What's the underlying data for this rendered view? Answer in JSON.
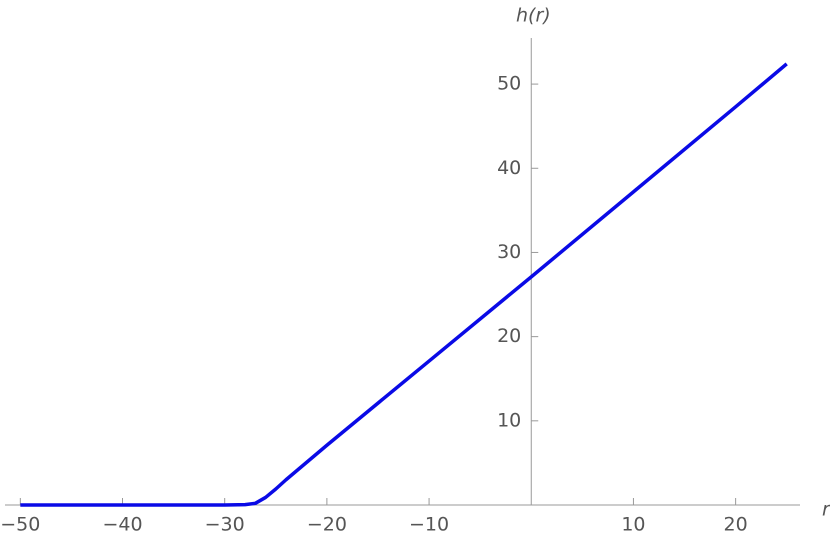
{
  "chart_data": {
    "type": "line",
    "x_label": "r",
    "y_label": "h(r)",
    "x": [
      -50,
      -40,
      -30,
      -28,
      -27,
      -26,
      -25,
      -24,
      -20,
      -10,
      0,
      10,
      20,
      25
    ],
    "series": [
      {
        "name": "h",
        "color": "#0a0ae6",
        "values": [
          0,
          0,
          0,
          0.05,
          0.2,
          0.9,
          1.9,
          3.0,
          7.1,
          17.1,
          27.1,
          37.2,
          47.3,
          52.4
        ]
      }
    ],
    "xlim": [
      -51.5,
      26.3
    ],
    "ylim": [
      0,
      55
    ],
    "xticks": [
      {
        "value": -50,
        "label": "−50"
      },
      {
        "value": -40,
        "label": "−40"
      },
      {
        "value": -30,
        "label": "−30"
      },
      {
        "value": -20,
        "label": "−20"
      },
      {
        "value": -10,
        "label": "−10"
      },
      10,
      20
    ],
    "yticks": [
      10,
      20,
      30,
      40,
      50
    ]
  }
}
